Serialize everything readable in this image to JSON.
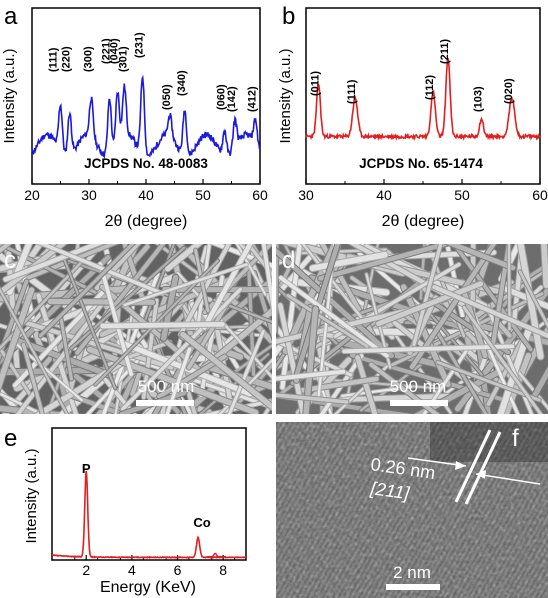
{
  "panels": {
    "a": {
      "letter": "a"
    },
    "b": {
      "letter": "b"
    },
    "c": {
      "letter": "c",
      "scalebar": "500 nm"
    },
    "d": {
      "letter": "d",
      "scalebar": "500 nm"
    },
    "e": {
      "letter": "e"
    },
    "f": {
      "letter": "f",
      "scalebar": "2 nm",
      "spacing": "0.26 nm",
      "plane": "[211]"
    }
  },
  "chart_data": [
    {
      "panel": "a",
      "type": "line",
      "color": "#1a1adc",
      "xlabel": "2θ (degree)",
      "ylabel": "Intensity (a.u.)",
      "xlim": [
        20,
        60
      ],
      "xticks": [
        20,
        30,
        40,
        50,
        60
      ],
      "annotation": "JCPDS No. 48-0083",
      "peaks": [
        {
          "x": 25.0,
          "label": "(111)"
        },
        {
          "x": 26.6,
          "label": "(220)"
        },
        {
          "x": 30.4,
          "label": "(300)"
        },
        {
          "x": 33.6,
          "label": "(221)"
        },
        {
          "x": 35.0,
          "label": "(040)"
        },
        {
          "x": 36.2,
          "label": "(301)"
        },
        {
          "x": 39.4,
          "label": "(231)"
        },
        {
          "x": 44.2,
          "label": "(050)"
        },
        {
          "x": 46.8,
          "label": "(340)"
        },
        {
          "x": 53.8,
          "label": "(060)"
        },
        {
          "x": 55.6,
          "label": "(142)"
        },
        {
          "x": 59.2,
          "label": "(412)"
        }
      ]
    },
    {
      "panel": "b",
      "type": "line",
      "color": "#e41e1e",
      "xlabel": "2θ (degree)",
      "ylabel": "Intensity (a.u.)",
      "xlim": [
        30,
        60
      ],
      "xticks": [
        30,
        40,
        50,
        60
      ],
      "annotation": "JCPDS No. 65-1474",
      "peaks": [
        {
          "x": 31.6,
          "label": "(011)"
        },
        {
          "x": 36.3,
          "label": "(111)"
        },
        {
          "x": 46.3,
          "label": "(112)"
        },
        {
          "x": 48.2,
          "label": "(211)"
        },
        {
          "x": 52.5,
          "label": "(103)"
        },
        {
          "x": 56.4,
          "label": "(020)"
        }
      ]
    },
    {
      "panel": "e",
      "type": "line",
      "color": "#e41e1e",
      "xlabel": "Energy (KeV)",
      "ylabel": "Intensity (a.u.)",
      "xlim": [
        0.5,
        9
      ],
      "xticks": [
        2,
        4,
        6,
        8
      ],
      "peaks": [
        {
          "x": 2.0,
          "label": "P"
        },
        {
          "x": 6.9,
          "label": "Co"
        }
      ]
    }
  ]
}
